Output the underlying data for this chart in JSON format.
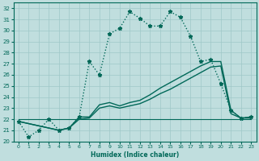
{
  "xlabel": "Humidex (Indice chaleur)",
  "ylabel": "",
  "background_color": "#c0dede",
  "grid_color": "#9ec8c8",
  "line_color": "#006858",
  "xlim": [
    -0.5,
    23.5
  ],
  "ylim": [
    20,
    32.5
  ],
  "yticks": [
    20,
    21,
    22,
    23,
    24,
    25,
    26,
    27,
    28,
    29,
    30,
    31,
    32
  ],
  "xticks": [
    0,
    1,
    2,
    3,
    4,
    5,
    6,
    7,
    8,
    9,
    10,
    11,
    12,
    13,
    14,
    15,
    16,
    17,
    18,
    19,
    20,
    21,
    22,
    23
  ],
  "series": [
    {
      "x": [
        0,
        1,
        2,
        3,
        4,
        5,
        6,
        7,
        8,
        9,
        10,
        11,
        12,
        13,
        14,
        15,
        16,
        17,
        18,
        19,
        20,
        21,
        22,
        23
      ],
      "y": [
        21.8,
        20.4,
        21.0,
        22.0,
        21.0,
        21.2,
        22.2,
        27.2,
        26.0,
        29.7,
        30.2,
        31.7,
        31.1,
        30.4,
        30.4,
        31.7,
        31.2,
        29.5,
        27.2,
        27.4,
        25.2,
        22.8,
        22.1,
        22.2
      ],
      "marker": "*",
      "linestyle": ":",
      "linewidth": 1.0,
      "markersize": 3.5
    },
    {
      "x": [
        0,
        4,
        5,
        6,
        7,
        8,
        9,
        10,
        11,
        12,
        13,
        14,
        15,
        16,
        17,
        18,
        19,
        20,
        21,
        22,
        23
      ],
      "y": [
        21.8,
        21.0,
        21.2,
        22.2,
        22.2,
        23.3,
        23.5,
        23.2,
        23.5,
        23.7,
        24.2,
        24.8,
        25.3,
        25.8,
        26.3,
        26.8,
        27.2,
        27.2,
        22.8,
        22.1,
        22.2
      ],
      "marker": null,
      "linestyle": "-",
      "linewidth": 1.0,
      "markersize": 0
    },
    {
      "x": [
        0,
        4,
        5,
        6,
        7,
        8,
        9,
        10,
        11,
        12,
        13,
        14,
        15,
        16,
        17,
        18,
        19,
        20,
        21,
        22,
        23
      ],
      "y": [
        21.8,
        21.0,
        21.2,
        22.0,
        22.1,
        23.0,
        23.2,
        23.0,
        23.2,
        23.4,
        23.8,
        24.3,
        24.7,
        25.2,
        25.7,
        26.2,
        26.7,
        26.8,
        22.5,
        22.1,
        22.1
      ],
      "marker": null,
      "linestyle": "-",
      "linewidth": 1.0,
      "markersize": 0
    },
    {
      "x": [
        0,
        23
      ],
      "y": [
        22.0,
        22.0
      ],
      "marker": null,
      "linestyle": "-",
      "linewidth": 0.8,
      "markersize": 0
    }
  ]
}
